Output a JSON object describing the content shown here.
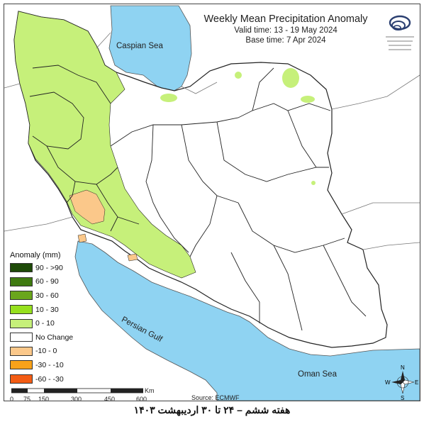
{
  "title": "Weekly Mean Precipitation Anomaly",
  "valid_time": "Valid time: 13 - 19 May 2024",
  "base_time": "Base time: 7 Apr 2024",
  "logo_icon": "organization-logo-icon",
  "legend": {
    "title": "Anomaly (mm)",
    "items": [
      {
        "label": "90 - >90",
        "color": "#1e4a08"
      },
      {
        "label": "60 - 90",
        "color": "#3f7a10"
      },
      {
        "label": "30 - 60",
        "color": "#6aa61c"
      },
      {
        "label": "10 - 30",
        "color": "#96e01e"
      },
      {
        "label": "0 - 10",
        "color": "#c6f07a"
      },
      {
        "label": "No Change",
        "color": "#ffffff"
      },
      {
        "label": "-10 - 0",
        "color": "#fbc88a"
      },
      {
        "label": "-30 - -10",
        "color": "#f9a21a"
      },
      {
        "label": "-60 - -30",
        "color": "#f35c14"
      }
    ]
  },
  "seas": {
    "caspian": "Caspian Sea",
    "persian_gulf": "Persian Gulf",
    "oman": "Oman Sea"
  },
  "source": "Source: ECMWF",
  "scale": {
    "ticks": [
      "0",
      "75",
      "150",
      "300",
      "450",
      "600"
    ],
    "unit": "Km"
  },
  "compass": {
    "n": "N",
    "s": "S",
    "e": "E",
    "w": "W"
  },
  "colors": {
    "sea": "#8fd3f2",
    "positive_anomaly": "#c6f07a",
    "negative_anomaly": "#fbc88a"
  },
  "caption": "هفته ششم – ۲۴ تا ۳۰ اردیبهشت ۱۴۰۳"
}
